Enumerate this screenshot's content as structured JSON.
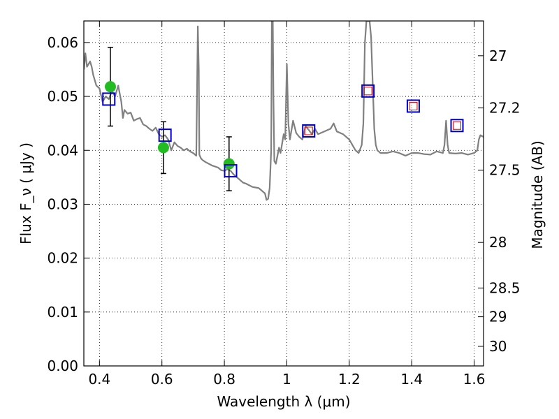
{
  "chart_data": {
    "type": "scatter",
    "xlabel": "Wavelength  λ (μm)",
    "ylabel": "Flux  F_ν  ( μJy )",
    "ylabel_right": "Magnitude (AB)",
    "xlim": [
      0.35,
      1.63
    ],
    "ylim": [
      0.0,
      0.064
    ],
    "grid": true,
    "x_ticks": [
      0.4,
      0.6,
      0.8,
      1.0,
      1.2,
      1.4,
      1.6
    ],
    "x_tick_labels": [
      "0.4",
      "0.6",
      "0.8",
      "1",
      "1.2",
      "1.4",
      "1.6"
    ],
    "y_ticks": [
      0.0,
      0.01,
      0.02,
      0.03,
      0.04,
      0.05,
      0.06
    ],
    "y_tick_labels": [
      "0.00",
      "0.01",
      "0.02",
      "0.03",
      "0.04",
      "0.05",
      "0.06"
    ],
    "right_ticks": [
      27,
      27.2,
      27.5,
      28,
      28.5,
      29,
      30
    ],
    "right_tick_labels": [
      "27",
      "27.2",
      "27.5",
      "28",
      "28.5",
      "29",
      "30"
    ],
    "colors": {
      "model": "#808080",
      "observed": "#22bb22",
      "model_band": "#0000cc",
      "model_band_inner": "#dd0000",
      "errorbar": "#000000",
      "grid": "#000000"
    },
    "series": [
      {
        "kind": "spectrum",
        "x": [
          0.35,
          0.355,
          0.36,
          0.365,
          0.37,
          0.375,
          0.38,
          0.39,
          0.4,
          0.41,
          0.42,
          0.43,
          0.44,
          0.45,
          0.46,
          0.47,
          0.475,
          0.48,
          0.49,
          0.5,
          0.51,
          0.52,
          0.53,
          0.54,
          0.55,
          0.56,
          0.57,
          0.58,
          0.59,
          0.6,
          0.61,
          0.62,
          0.63,
          0.64,
          0.65,
          0.66,
          0.67,
          0.68,
          0.69,
          0.7,
          0.71,
          0.715,
          0.718,
          0.72,
          0.725,
          0.73,
          0.74,
          0.75,
          0.76,
          0.77,
          0.78,
          0.79,
          0.8,
          0.81,
          0.82,
          0.83,
          0.84,
          0.85,
          0.86,
          0.87,
          0.88,
          0.89,
          0.9,
          0.91,
          0.92,
          0.93,
          0.935,
          0.94,
          0.945,
          0.95,
          0.952,
          0.955,
          0.957,
          0.96,
          0.965,
          0.97,
          0.975,
          0.98,
          0.99,
          0.995,
          1.0,
          1.005,
          1.01,
          1.02,
          1.03,
          1.04,
          1.05,
          1.06,
          1.07,
          1.08,
          1.09,
          1.1,
          1.12,
          1.14,
          1.15,
          1.16,
          1.18,
          1.2,
          1.22,
          1.23,
          1.24,
          1.245,
          1.25,
          1.255,
          1.26,
          1.265,
          1.27,
          1.28,
          1.285,
          1.29,
          1.3,
          1.32,
          1.34,
          1.36,
          1.38,
          1.4,
          1.42,
          1.44,
          1.46,
          1.48,
          1.5,
          1.505,
          1.51,
          1.515,
          1.52,
          1.54,
          1.56,
          1.58,
          1.6,
          1.61,
          1.615,
          1.62,
          1.63
        ],
        "y": [
          0.055,
          0.058,
          0.0555,
          0.056,
          0.0565,
          0.0555,
          0.054,
          0.052,
          0.0515,
          0.049,
          0.05,
          0.0495,
          0.051,
          0.05,
          0.052,
          0.049,
          0.046,
          0.0475,
          0.0468,
          0.047,
          0.0455,
          0.0458,
          0.046,
          0.0448,
          0.0445,
          0.044,
          0.0436,
          0.0442,
          0.043,
          0.0425,
          0.0428,
          0.042,
          0.04,
          0.0415,
          0.0408,
          0.0405,
          0.04,
          0.0403,
          0.0398,
          0.0395,
          0.039,
          0.063,
          0.055,
          0.0392,
          0.0385,
          0.0382,
          0.0378,
          0.0375,
          0.0372,
          0.037,
          0.0368,
          0.0363,
          0.0362,
          0.0365,
          0.0362,
          0.0355,
          0.035,
          0.0345,
          0.034,
          0.0338,
          0.0335,
          0.0332,
          0.0331,
          0.033,
          0.0325,
          0.032,
          0.0308,
          0.031,
          0.033,
          0.04,
          0.064,
          0.064,
          0.05,
          0.038,
          0.0375,
          0.039,
          0.0405,
          0.0395,
          0.043,
          0.042,
          0.056,
          0.045,
          0.042,
          0.0455,
          0.0432,
          0.0425,
          0.042,
          0.0445,
          0.0438,
          0.043,
          0.044,
          0.043,
          0.0435,
          0.044,
          0.045,
          0.0435,
          0.043,
          0.042,
          0.04,
          0.0395,
          0.041,
          0.045,
          0.06,
          0.064,
          0.064,
          0.064,
          0.061,
          0.044,
          0.041,
          0.04,
          0.0395,
          0.0395,
          0.0398,
          0.0395,
          0.039,
          0.0395,
          0.0395,
          0.0393,
          0.0392,
          0.0398,
          0.0395,
          0.041,
          0.0455,
          0.041,
          0.0395,
          0.0394,
          0.0395,
          0.0392,
          0.0395,
          0.04,
          0.042,
          0.0428,
          0.0425
        ]
      },
      {
        "kind": "observed",
        "x": [
          0.435,
          0.605,
          0.815
        ],
        "y": [
          0.0518,
          0.0405,
          0.0375
        ],
        "yerr": [
          0.0073,
          0.0048,
          0.005
        ]
      },
      {
        "kind": "model_band",
        "x": [
          0.43,
          0.61,
          0.82,
          1.07,
          1.26,
          1.405,
          1.545
        ],
        "y": [
          0.0495,
          0.0428,
          0.0362,
          0.0436,
          0.051,
          0.0482,
          0.0446
        ]
      }
    ]
  }
}
